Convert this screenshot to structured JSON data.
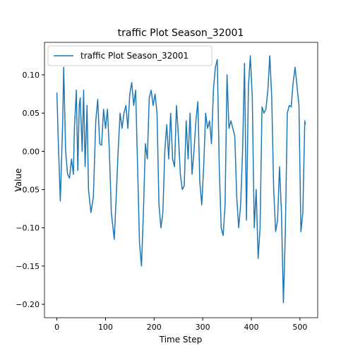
{
  "chart_data": {
    "type": "line",
    "title": "traffic Plot Season_32001",
    "xlabel": "Time Step",
    "ylabel": "Value",
    "x": [
      0,
      3,
      7,
      12,
      14,
      18,
      22,
      26,
      30,
      34,
      36,
      40,
      43,
      46,
      48,
      52,
      55,
      58,
      62,
      65,
      70,
      75,
      80,
      84,
      88,
      92,
      96,
      100,
      104,
      108,
      112,
      118,
      122,
      126,
      130,
      134,
      138,
      142,
      146,
      150,
      154,
      158,
      162,
      166,
      170,
      174,
      178,
      182,
      186,
      190,
      194,
      198,
      202,
      206,
      210,
      214,
      218,
      222,
      226,
      230,
      234,
      238,
      242,
      246,
      250,
      254,
      258,
      262,
      266,
      270,
      274,
      278,
      282,
      286,
      290,
      294,
      298,
      302,
      306,
      310,
      314,
      318,
      322,
      326,
      330,
      334,
      338,
      342,
      346,
      350,
      354,
      358,
      362,
      366,
      370,
      374,
      378,
      382,
      386,
      390,
      394,
      398,
      402,
      406,
      410,
      414,
      418,
      422,
      426,
      430,
      434,
      438,
      442,
      446,
      450,
      454,
      458,
      462,
      466,
      470,
      474,
      478,
      482,
      486,
      490,
      494,
      498,
      502,
      506,
      510,
      511
    ],
    "series": [
      {
        "name": "traffic Plot Season_32001",
        "color": "#1f77b4",
        "values": [
          0.077,
          0.01,
          -0.065,
          0.04,
          0.11,
          0.0,
          -0.03,
          -0.035,
          -0.01,
          -0.03,
          0.03,
          0.08,
          -0.025,
          0.06,
          0.07,
          0.0,
          0.08,
          -0.02,
          0.06,
          -0.05,
          -0.08,
          -0.06,
          0.04,
          0.068,
          0.01,
          0.008,
          0.055,
          0.03,
          0.055,
          0.0,
          -0.08,
          -0.115,
          -0.06,
          0.0,
          0.05,
          0.03,
          0.05,
          0.06,
          0.03,
          0.075,
          0.09,
          0.06,
          0.08,
          -0.02,
          -0.12,
          -0.15,
          -0.08,
          0.01,
          -0.01,
          0.07,
          0.08,
          0.06,
          0.075,
          0.05,
          -0.07,
          -0.1,
          -0.08,
          0.0,
          0.035,
          -0.01,
          0.05,
          -0.01,
          -0.02,
          0.06,
          0.02,
          -0.03,
          -0.05,
          -0.045,
          0.04,
          -0.01,
          0.05,
          -0.03,
          0.0,
          0.04,
          0.065,
          -0.04,
          -0.07,
          -0.02,
          0.05,
          0.03,
          0.04,
          0.01,
          0.08,
          0.11,
          0.12,
          -0.02,
          -0.1,
          -0.11,
          -0.07,
          0.1,
          0.03,
          0.04,
          0.03,
          0.02,
          -0.06,
          -0.1,
          -0.07,
          0.0,
          0.115,
          -0.09,
          0.085,
          0.125,
          0.07,
          -0.1,
          -0.05,
          -0.14,
          -0.1,
          0.058,
          0.05,
          0.055,
          0.08,
          0.125,
          0.07,
          -0.05,
          -0.105,
          -0.09,
          -0.02,
          -0.08,
          -0.198,
          -0.105,
          0.05,
          0.06,
          0.058,
          0.09,
          0.11,
          0.085,
          0.06,
          -0.105,
          -0.08,
          0.04,
          0.035
        ]
      }
    ],
    "xlim": [
      -25.55,
      536.55
    ],
    "ylim": [
      -0.2175,
      0.1425
    ],
    "xticks": [
      0,
      100,
      200,
      300,
      400,
      500
    ],
    "yticks": [
      {
        "value": -0.2,
        "label": "−0.20"
      },
      {
        "value": -0.15,
        "label": "−0.15"
      },
      {
        "value": -0.1,
        "label": "−0.10"
      },
      {
        "value": -0.05,
        "label": "−0.05"
      },
      {
        "value": 0,
        "label": "0.00"
      },
      {
        "value": 0.05,
        "label": "0.05"
      },
      {
        "value": 0.1,
        "label": "0.10"
      }
    ],
    "legend": "upper left",
    "grid": false
  }
}
